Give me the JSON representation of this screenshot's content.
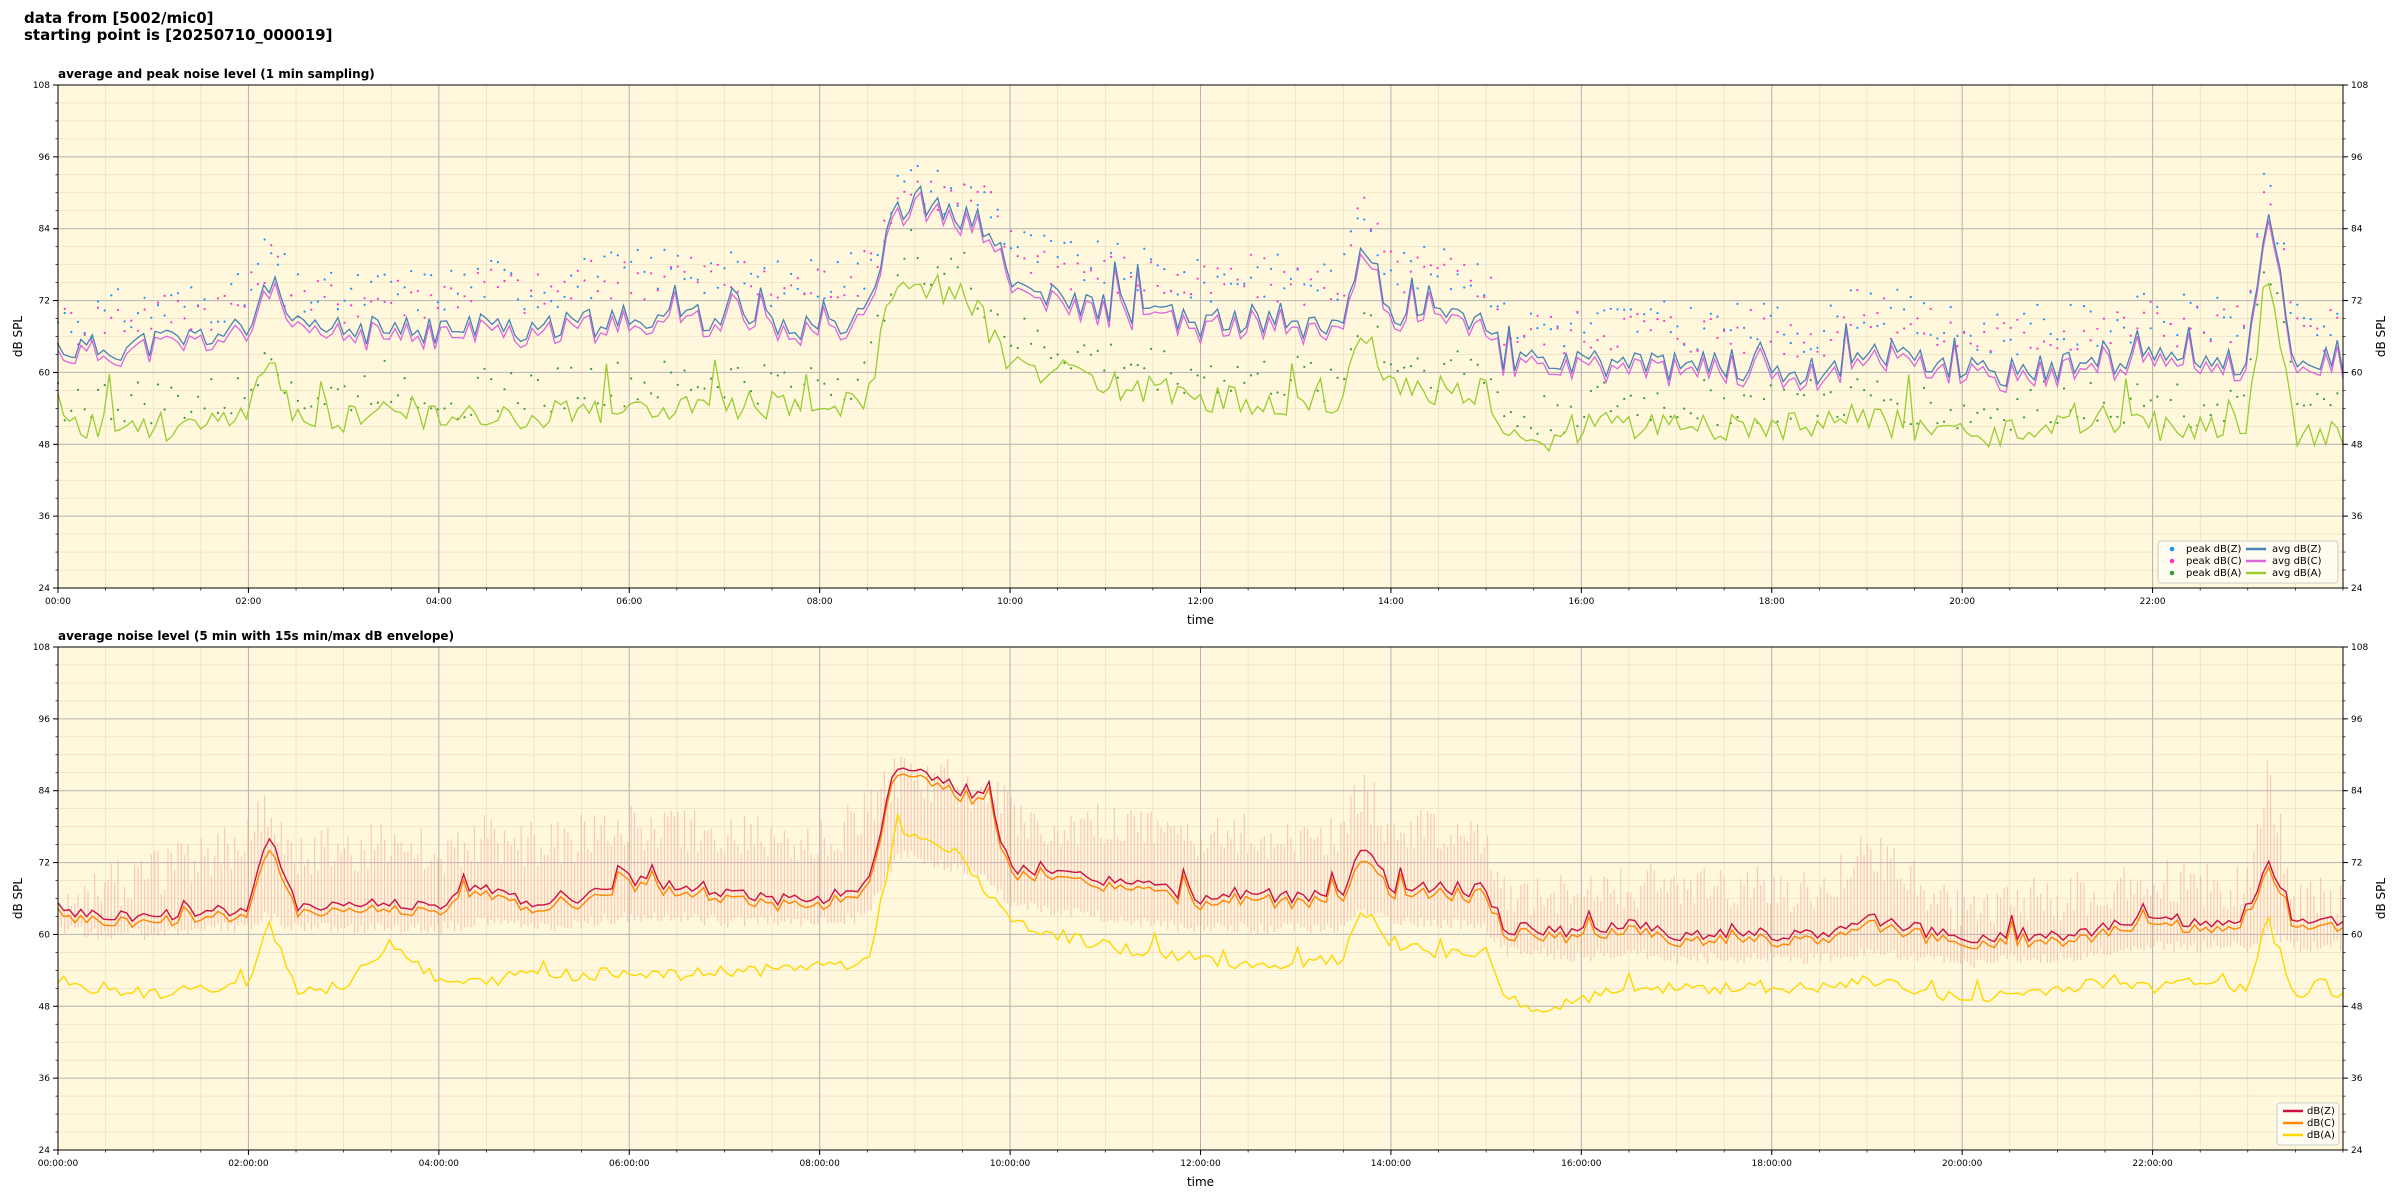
{
  "header": {
    "line1": "data from [5002/mic0]",
    "line2": "starting point is [20250710_000019]"
  },
  "colors": {
    "plot_bg": "#fff8dc",
    "peak_z": "#1e90ff",
    "peak_c": "#ff33cc",
    "peak_a": "#3a9a3a",
    "avg_z": "#4682b4",
    "avg_c": "#dd66dd",
    "avg_a": "#9acd32",
    "db_z": "#cc1144",
    "db_c": "#ff8800",
    "db_a": "#ffd700",
    "envelope": "#f4a9a0"
  },
  "chart_data": [
    {
      "type": "line",
      "title": "average and peak noise level (1 min sampling)",
      "xlabel": "time",
      "ylabel": "dB SPL",
      "xlim": [
        0,
        24
      ],
      "ylim": [
        24,
        108
      ],
      "yticks": [
        "24",
        "36",
        "48",
        "60",
        "72",
        "84",
        "96",
        "108"
      ],
      "xticks": [
        "00:00",
        "02:00",
        "04:00",
        "06:00",
        "08:00",
        "10:00",
        "12:00",
        "14:00",
        "16:00",
        "18:00",
        "20:00",
        "22:00"
      ],
      "grid": true,
      "legend_position": "bottom-right",
      "legend": [
        "peak dB(Z)",
        "peak dB(C)",
        "peak dB(A)",
        "avg dB(Z)",
        "avg dB(C)",
        "avg dB(A)"
      ],
      "x_hours": [
        0,
        0.5,
        1,
        1.5,
        2,
        2.2,
        2.5,
        3,
        3.5,
        4,
        4.5,
        5,
        5.5,
        6,
        6.5,
        7,
        7.5,
        8,
        8.5,
        8.8,
        9,
        9.2,
        9.5,
        9.8,
        10,
        10.5,
        11,
        11.5,
        12,
        12.5,
        13,
        13.5,
        13.7,
        14,
        14.5,
        15,
        15.2,
        15.5,
        16,
        16.5,
        17,
        17.5,
        18,
        18.5,
        19,
        19.5,
        20,
        20.5,
        21,
        21.5,
        22,
        22.5,
        23,
        23.2,
        23.5,
        24
      ],
      "series": [
        {
          "name": "avg dB(Z)",
          "values": [
            64,
            64,
            65,
            66,
            67,
            76,
            67,
            67,
            67,
            67,
            68,
            67,
            68,
            69,
            70,
            69,
            68,
            68,
            70,
            88,
            88,
            87,
            86,
            84,
            75,
            72,
            71,
            70,
            68,
            69,
            68,
            69,
            82,
            70,
            69,
            69,
            62,
            62,
            61,
            62,
            61,
            61,
            61,
            60,
            64,
            62,
            60,
            60,
            61,
            61,
            63,
            62,
            62,
            88,
            62,
            62
          ]
        },
        {
          "name": "avg dB(C)",
          "values": [
            63,
            63,
            64,
            65,
            66,
            75,
            66,
            66,
            66,
            66,
            67,
            66,
            67,
            68,
            69,
            68,
            67,
            67,
            69,
            87,
            87,
            86,
            85,
            83,
            74,
            71,
            70,
            69,
            67,
            68,
            67,
            68,
            81,
            69,
            68,
            68,
            61,
            61,
            60,
            61,
            60,
            60,
            60,
            59,
            63,
            61,
            59,
            59,
            60,
            60,
            62,
            61,
            61,
            87,
            61,
            61
          ]
        },
        {
          "name": "avg dB(A)",
          "values": [
            52,
            51,
            51,
            51,
            52,
            63,
            52,
            52,
            55,
            52,
            53,
            53,
            54,
            54,
            54,
            55,
            54,
            55,
            55,
            76,
            76,
            74,
            73,
            67,
            62,
            60,
            58,
            57,
            56,
            55,
            55,
            55,
            68,
            58,
            57,
            57,
            49,
            48,
            51,
            51,
            51,
            51,
            51,
            51,
            52,
            51,
            49,
            50,
            51,
            52,
            51,
            51,
            51,
            77,
            50,
            50
          ]
        },
        {
          "name": "peak dB(Z)",
          "values": [
            68,
            69,
            70,
            71,
            72,
            80,
            72,
            72,
            73,
            73,
            75,
            73,
            75,
            76,
            77,
            76,
            74,
            75,
            77,
            90,
            91,
            90,
            89,
            88,
            81,
            78,
            77,
            76,
            74,
            76,
            75,
            75,
            88,
            77,
            76,
            76,
            67,
            67,
            67,
            68,
            67,
            67,
            67,
            66,
            71,
            68,
            66,
            66,
            67,
            67,
            69,
            68,
            68,
            92,
            67,
            67
          ]
        },
        {
          "name": "peak dB(C)",
          "values": [
            67,
            68,
            69,
            70,
            71,
            79,
            71,
            71,
            72,
            72,
            74,
            72,
            74,
            75,
            76,
            75,
            73,
            74,
            76,
            89,
            90,
            89,
            88,
            87,
            80,
            77,
            76,
            75,
            73,
            75,
            74,
            74,
            87,
            76,
            75,
            75,
            66,
            66,
            66,
            67,
            66,
            66,
            66,
            65,
            70,
            67,
            65,
            65,
            66,
            66,
            68,
            67,
            67,
            91,
            66,
            66
          ]
        },
        {
          "name": "peak dB(A)",
          "values": [
            55,
            54,
            54,
            54,
            55,
            66,
            55,
            55,
            58,
            55,
            56,
            56,
            57,
            57,
            57,
            58,
            57,
            58,
            58,
            79,
            79,
            77,
            76,
            70,
            65,
            63,
            61,
            60,
            59,
            58,
            58,
            58,
            71,
            61,
            60,
            60,
            52,
            51,
            54,
            54,
            54,
            54,
            54,
            54,
            55,
            54,
            52,
            53,
            54,
            55,
            54,
            54,
            54,
            80,
            53,
            53
          ]
        }
      ]
    },
    {
      "type": "line",
      "title": "average noise level (5 min with 15s min/max dB envelope)",
      "xlabel": "time",
      "ylabel": "dB SPL",
      "xlim": [
        0,
        24
      ],
      "ylim": [
        24,
        108
      ],
      "yticks": [
        "24",
        "36",
        "48",
        "60",
        "72",
        "84",
        "96",
        "108"
      ],
      "xticks": [
        "00:00:00",
        "02:00:00",
        "04:00:00",
        "06:00:00",
        "08:00:00",
        "10:00:00",
        "12:00:00",
        "14:00:00",
        "16:00:00",
        "18:00:00",
        "20:00:00",
        "22:00:00"
      ],
      "grid": true,
      "legend_position": "bottom-right",
      "legend": [
        "dB(Z)",
        "dB(C)",
        "dB(A)"
      ],
      "x_hours": [
        0,
        0.5,
        1,
        1.5,
        2,
        2.2,
        2.5,
        3,
        3.5,
        4,
        4.5,
        5,
        5.5,
        6,
        6.5,
        7,
        7.5,
        8,
        8.5,
        8.8,
        9,
        9.2,
        9.5,
        9.8,
        10,
        10.5,
        11,
        11.5,
        12,
        12.5,
        13,
        13.5,
        13.7,
        14,
        14.5,
        15,
        15.2,
        15.5,
        16,
        16.5,
        17,
        17.5,
        18,
        18.5,
        19,
        19.5,
        20,
        20.5,
        21,
        21.5,
        22,
        22.5,
        23,
        23.2,
        23.5,
        24
      ],
      "series": [
        {
          "name": "dB(Z)",
          "values": [
            64,
            63,
            63,
            64,
            64,
            76,
            65,
            65,
            65,
            65,
            68,
            65,
            66,
            69,
            68,
            67,
            66,
            66,
            68,
            88,
            88,
            86,
            84,
            82,
            71,
            70,
            69,
            68,
            66,
            67,
            66,
            67,
            76,
            68,
            68,
            67,
            61,
            61,
            60,
            62,
            60,
            60,
            60,
            60,
            63,
            61,
            59,
            60,
            60,
            61,
            63,
            62,
            62,
            73,
            62,
            62
          ]
        },
        {
          "name": "dB(C)",
          "values": [
            63,
            62,
            62,
            63,
            63,
            74,
            64,
            64,
            64,
            64,
            67,
            64,
            65,
            68,
            67,
            66,
            65,
            65,
            67,
            87,
            87,
            85,
            83,
            81,
            70,
            69,
            68,
            67,
            65,
            66,
            65,
            66,
            74,
            67,
            67,
            66,
            60,
            60,
            59,
            61,
            59,
            59,
            59,
            59,
            62,
            60,
            58,
            59,
            59,
            60,
            62,
            61,
            61,
            72,
            61,
            61
          ]
        },
        {
          "name": "dB(A)",
          "values": [
            51,
            51,
            50,
            51,
            51,
            63,
            51,
            51,
            59,
            52,
            52,
            54,
            53,
            54,
            53,
            54,
            54,
            55,
            55,
            77,
            76,
            75,
            73,
            66,
            62,
            60,
            58,
            57,
            56,
            55,
            55,
            56,
            64,
            58,
            57,
            57,
            50,
            47,
            49,
            51,
            51,
            51,
            51,
            51,
            52,
            51,
            49,
            50,
            51,
            52,
            51,
            52,
            51,
            63,
            50,
            50
          ]
        },
        {
          "name": "envelope max",
          "values": [
            68,
            72,
            74,
            77,
            80,
            85,
            78,
            78,
            79,
            78,
            80,
            79,
            80,
            82,
            82,
            81,
            80,
            80,
            84,
            90,
            91,
            90,
            89,
            88,
            84,
            82,
            82,
            81,
            80,
            81,
            80,
            81,
            88,
            82,
            81,
            81,
            70,
            70,
            70,
            72,
            72,
            71,
            72,
            71,
            78,
            73,
            68,
            69,
            70,
            71,
            73,
            72,
            72,
            90,
            70,
            69
          ]
        },
        {
          "name": "envelope min",
          "values": [
            62,
            61,
            61,
            62,
            62,
            64,
            62,
            62,
            62,
            62,
            63,
            62,
            63,
            64,
            64,
            63,
            63,
            63,
            64,
            74,
            74,
            73,
            72,
            70,
            66,
            65,
            64,
            63,
            62,
            62,
            62,
            62,
            65,
            63,
            63,
            62,
            58,
            58,
            57,
            58,
            57,
            57,
            57,
            57,
            58,
            57,
            56,
            57,
            57,
            58,
            59,
            59,
            59,
            62,
            59,
            59
          ]
        }
      ]
    }
  ]
}
